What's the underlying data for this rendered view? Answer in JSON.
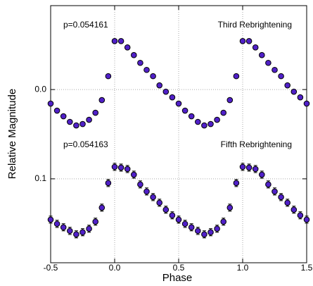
{
  "chart_data": {
    "type": "scatter",
    "xlabel": "Phase",
    "ylabel": "Relative Magnitude",
    "x": [
      -0.5,
      -0.45,
      -0.4,
      -0.35,
      -0.3,
      -0.25,
      -0.2,
      -0.15,
      -0.1,
      -0.05,
      0.0,
      0.05,
      0.1,
      0.15,
      0.2,
      0.25,
      0.3,
      0.35,
      0.4,
      0.45,
      0.5,
      0.55,
      0.6,
      0.65,
      0.7,
      0.75,
      0.8,
      0.85,
      0.9,
      0.95,
      1.0,
      1.05,
      1.1,
      1.15,
      1.2,
      1.25,
      1.3,
      1.35,
      1.4,
      1.45,
      1.5
    ],
    "series": [
      {
        "name": "Third Rebrightening",
        "annotation": "p=0.054161",
        "color": "#5020c8",
        "values": [
          0.0157,
          0.0236,
          0.0299,
          0.0362,
          0.0402,
          0.0386,
          0.0339,
          0.026,
          0.0118,
          -0.015,
          -0.0543,
          -0.0543,
          -0.0472,
          -0.0386,
          -0.0299,
          -0.022,
          -0.015,
          -0.0047,
          0.0024,
          0.0087,
          0.0157,
          0.0236,
          0.0299,
          0.0362,
          0.0402,
          0.0386,
          0.0339,
          0.026,
          0.0118,
          -0.015,
          -0.0543,
          -0.0543,
          -0.0472,
          -0.0386,
          -0.0299,
          -0.022,
          -0.015,
          -0.0047,
          0.0024,
          0.0087,
          0.0157
        ]
      },
      {
        "name": "Fifth Rebrightening",
        "annotation": "p=0.054163",
        "color": "#5020c8",
        "error": 0.004,
        "values": [
          0.1457,
          0.1504,
          0.1543,
          0.1583,
          0.1622,
          0.1598,
          0.1559,
          0.148,
          0.1323,
          0.1047,
          0.0866,
          0.0874,
          0.089,
          0.0953,
          0.1063,
          0.1142,
          0.1205,
          0.1268,
          0.1346,
          0.1409,
          0.1457,
          0.1504,
          0.1543,
          0.1583,
          0.1622,
          0.1598,
          0.1559,
          0.148,
          0.1323,
          0.1047,
          0.0866,
          0.0874,
          0.089,
          0.0953,
          0.1063,
          0.1142,
          0.1205,
          0.1268,
          0.1346,
          0.1409,
          0.1457
        ]
      }
    ],
    "xlim": [
      -0.5,
      1.5
    ],
    "ylim": [
      0.194,
      -0.094
    ],
    "xticks": [
      -0.5,
      {
        "value": 0,
        "label": "0.0"
      },
      0.5,
      {
        "value": 1,
        "label": "1.0"
      },
      1.5
    ],
    "yticks": [
      {
        "value": 0,
        "label": "0.0"
      },
      0.1
    ],
    "grid": true
  }
}
